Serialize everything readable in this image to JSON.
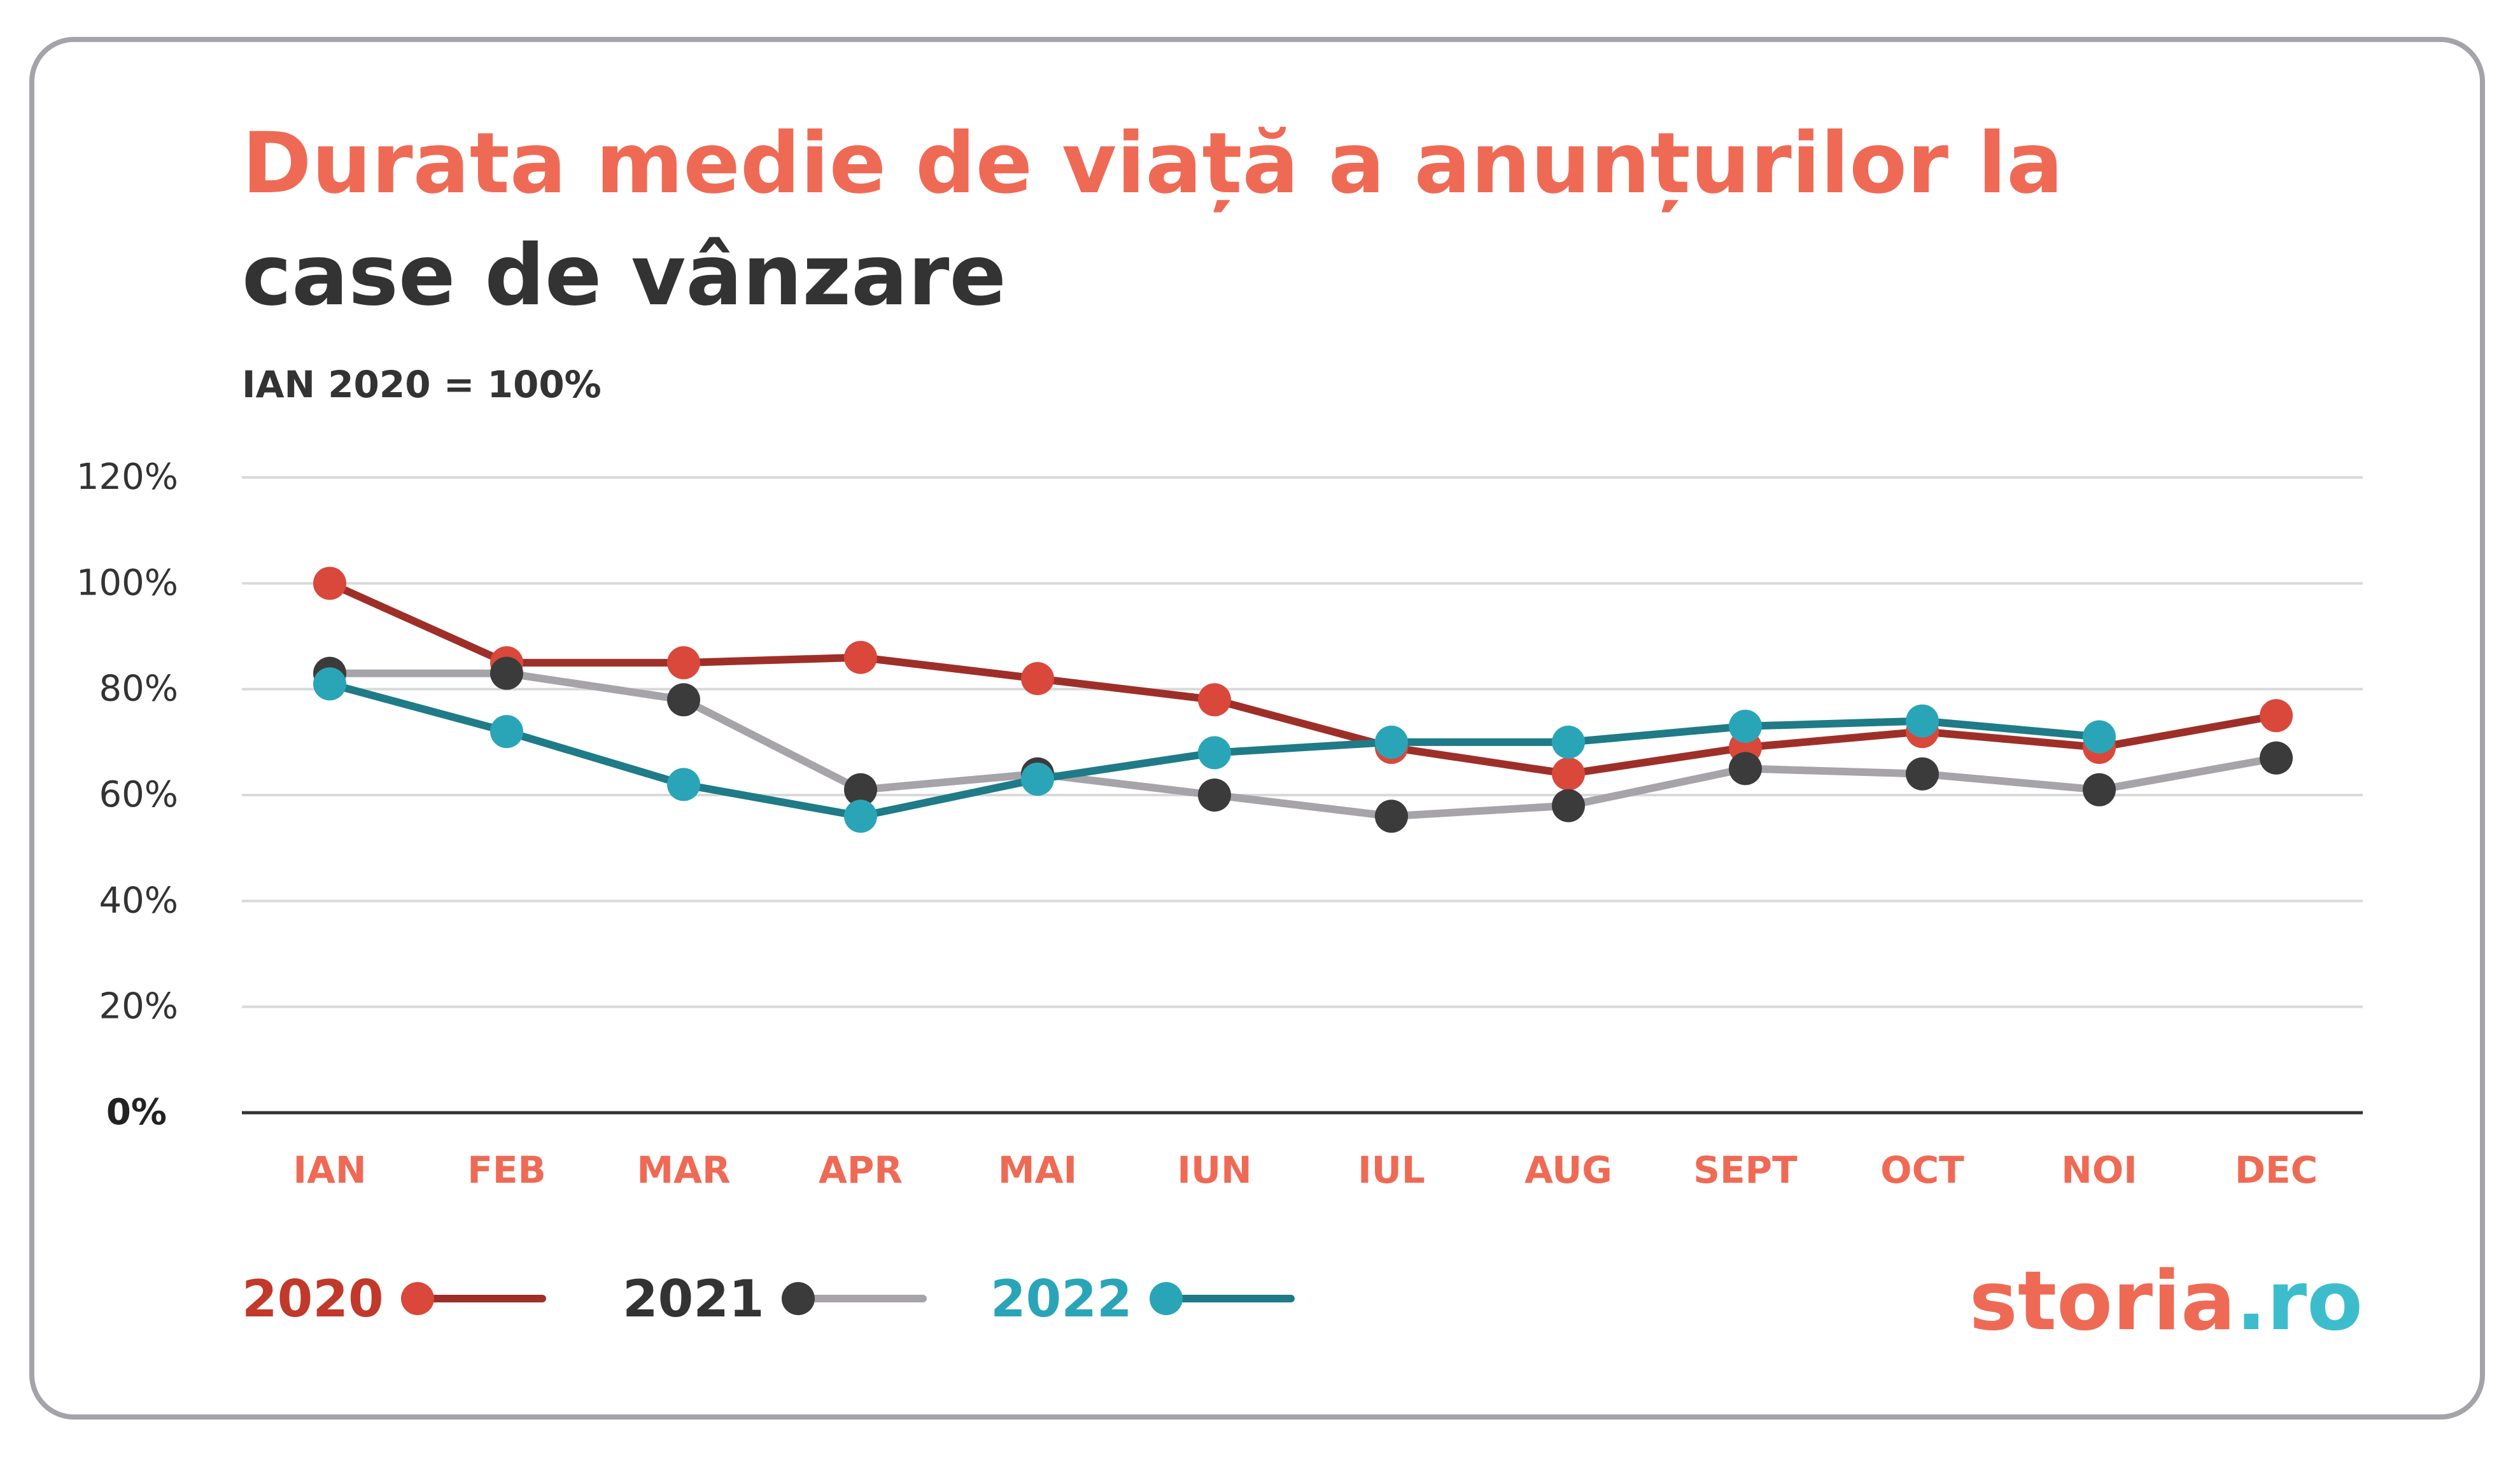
{
  "chart_data": {
    "type": "line",
    "title_line1": "Durata medie de viață a anunțurilor la",
    "title_line2": "case de vânzare",
    "subtitle": "IAN 2020 = 100%",
    "xlabel": "",
    "ylabel": "",
    "ylim": [
      0,
      120
    ],
    "yticks": [
      0,
      20,
      40,
      60,
      80,
      100,
      120
    ],
    "ytick_labels": [
      "0%",
      "20%",
      "40%",
      "60%",
      "80%",
      "100%",
      "120%"
    ],
    "grid": true,
    "legend_position": "bottom-left",
    "categories": [
      "IAN",
      "FEB",
      "MAR",
      "APR",
      "MAI",
      "IUN",
      "IUL",
      "AUG",
      "SEPT",
      "OCT",
      "NOI",
      "DEC"
    ],
    "series": [
      {
        "name": "2020",
        "values": [
          100,
          85,
          85,
          86,
          82,
          78,
          69,
          64,
          69,
          72,
          69,
          75
        ],
        "marker_color": "#d9483b",
        "line_color": "#9e2f28",
        "label_color": "#c0392b"
      },
      {
        "name": "2021",
        "values": [
          83,
          83,
          78,
          61,
          64,
          60,
          56,
          58,
          65,
          64,
          61,
          67
        ],
        "marker_color": "#3b3b3b",
        "line_color": "#a6a4a8",
        "label_color": "#333333"
      },
      {
        "name": "2022",
        "values": [
          81,
          72,
          62,
          56,
          63,
          68,
          70,
          70,
          73,
          74,
          71,
          null
        ],
        "marker_color": "#2aa5b8",
        "line_color": "#1e7b87",
        "label_color": "#2aa5b8"
      }
    ]
  },
  "colors": {
    "title_accent": "#ef6a55",
    "title_dark": "#333333",
    "xtick": "#ef6a55",
    "grid": "#d9d9d9",
    "axis": "#333333",
    "border": "#a3a3a8",
    "logo_main": "#ef6a55",
    "logo_tld": "#3dbdcc"
  },
  "logo": {
    "main": "storia",
    "tld": ".ro"
  }
}
